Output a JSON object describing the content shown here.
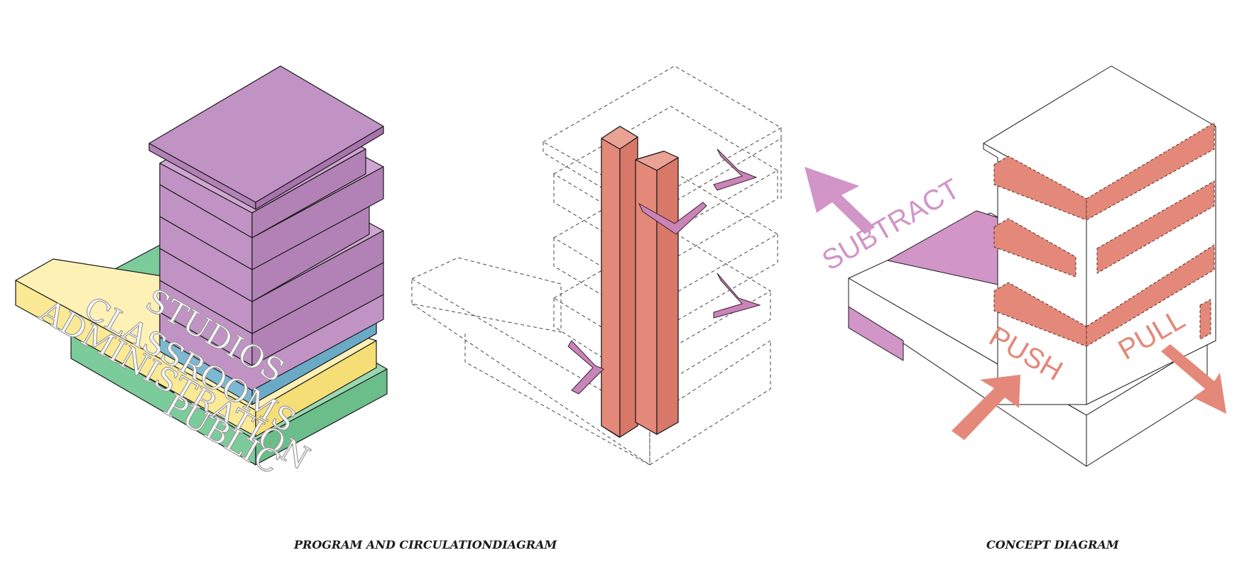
{
  "captions": {
    "left": "PROGRAM AND CIRCULATIONDIAGRAM",
    "right": "CONCEPT DIAGRAM"
  },
  "program": {
    "labels": {
      "studios": "STUDIOS",
      "classrooms": "CLASSROOMS",
      "administration": "ADMINISTRATION",
      "public": "PUBLIC"
    }
  },
  "concept": {
    "labels": {
      "subtract": "SUBTRACT",
      "push": "PUSH",
      "pull": "PULL"
    }
  },
  "colors": {
    "studios": "#c193c4",
    "classrooms": "#7ab8d3",
    "administration": "#fbe995",
    "public": "#7ccc9b",
    "circulation": "#e48879",
    "stairs": "#c984b8",
    "subtract": "#d195c8",
    "push_pull": "#e48879"
  }
}
